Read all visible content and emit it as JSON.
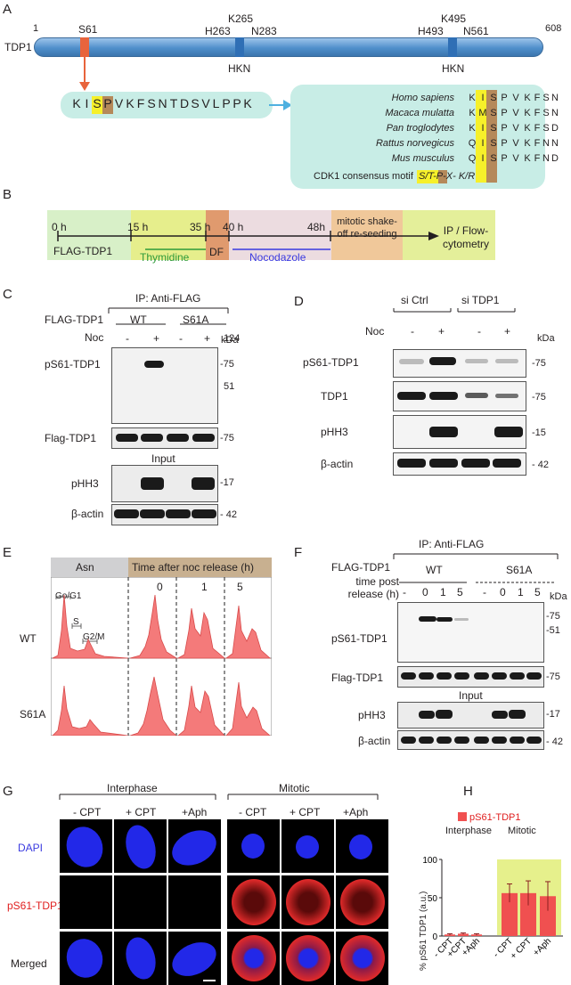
{
  "panels": {
    "A": "A",
    "B": "B",
    "C": "C",
    "D": "D",
    "E": "E",
    "F": "F",
    "G": "G",
    "H": "H"
  },
  "panelA": {
    "protein": "TDP1",
    "start": "1",
    "end": "608",
    "site_s61": "S61",
    "h263": "H263",
    "k265": "K265",
    "n283": "N283",
    "h493": "H493",
    "k495": "K495",
    "n561": "N561",
    "hkn1": "HKN",
    "hkn2": "HKN",
    "motif_seq": [
      "K",
      "I",
      "S",
      "P",
      "V",
      "K",
      "F",
      "S",
      "N",
      "T",
      "D",
      "S",
      "V",
      "L",
      "P",
      "P",
      "K"
    ],
    "species": [
      {
        "name": "Homo sapiens",
        "seq": [
          "K",
          "I",
          "S",
          "P",
          "V",
          "K",
          "F",
          "S",
          "N"
        ]
      },
      {
        "name": "Macaca mulatta",
        "seq": [
          "K",
          "M",
          "S",
          "P",
          "V",
          "K",
          "F",
          "S",
          "N"
        ]
      },
      {
        "name": "Pan troglodytes",
        "seq": [
          "K",
          "I",
          "S",
          "P",
          "V",
          "K",
          "F",
          "S",
          "D"
        ]
      },
      {
        "name": "Rattus norvegicus",
        "seq": [
          "Q",
          "I",
          "S",
          "P",
          "V",
          "K",
          "F",
          "N",
          "N"
        ]
      },
      {
        "name": "Mus musculus",
        "seq": [
          "Q",
          "I",
          "S",
          "P",
          "V",
          "K",
          "F",
          "N",
          "D"
        ]
      }
    ],
    "consensus_label": "CDK1 consensus motif",
    "consensus_motif": "S/T-P-X- K/R"
  },
  "panelB": {
    "t0": "0 h",
    "t15": "15 h",
    "t35": "35 h",
    "t40": "40 h",
    "t48": "48h",
    "seg_flag": "FLAG-TDP1",
    "seg_thymidine": "Thymidine",
    "seg_df": "DF",
    "seg_nocodazole": "Nocodazole",
    "seg_mitotic": "mitotic shake-off re-seeding",
    "seg_ip": "IP / Flow-cytometry"
  },
  "panelC": {
    "ip_title": "IP: Anti-FLAG",
    "row_label": "FLAG-TDP1",
    "wt": "WT",
    "s61a": "S61A",
    "noc": "Noc",
    "noc_values": [
      "-",
      "+",
      "-",
      "+"
    ],
    "kda": "kDa",
    "blots": [
      "pS61-TDP1",
      "Flag-TDP1",
      "pHH3",
      "β-actin"
    ],
    "input": "Input",
    "markers": [
      "124",
      "-75",
      "51",
      "-75",
      "-17",
      "- 42"
    ]
  },
  "panelD": {
    "si_ctrl": "si Ctrl",
    "si_tdp1": "si TDP1",
    "noc": "Noc",
    "noc_values": [
      "-",
      "+",
      "-",
      "+"
    ],
    "kda": "kDa",
    "blots": [
      "pS61-TDP1",
      "TDP1",
      "pHH3",
      "β-actin"
    ],
    "markers": [
      "-75",
      "-75",
      "-15",
      "- 42"
    ]
  },
  "panelE": {
    "asn": "Asn",
    "header": "Time after noc release (h)",
    "times": [
      "0",
      "1",
      "5"
    ],
    "rows": [
      "WT",
      "S61A"
    ],
    "phases": [
      "Go/G1",
      "S",
      "G2/M"
    ]
  },
  "panelF": {
    "ip_title": "IP: Anti-FLAG",
    "row_label": "FLAG-TDP1",
    "time_label": "time post release (h)",
    "wt": "WT",
    "s61a": "S61A",
    "times": [
      "-",
      "0",
      "1",
      "5",
      "-",
      "0",
      "1",
      "5"
    ],
    "kda": "kDa",
    "blots": [
      "pS61-TDP1",
      "Flag-TDP1",
      "pHH3",
      "β-actin"
    ],
    "input": "Input",
    "markers": [
      "-75",
      "-51",
      "-75",
      "-17",
      "- 42"
    ]
  },
  "panelG": {
    "interphase": "Interphase",
    "mitotic": "Mitotic",
    "conditions": [
      "- CPT",
      "+ CPT",
      "+Aph",
      "- CPT",
      "+ CPT",
      "+Aph"
    ],
    "rows": [
      "DAPI",
      "pS61-TDP1",
      "Merged"
    ]
  },
  "panelH": {
    "legend": "pS61-TDP1",
    "ylabel": "% pS61 TDP1 (a.u.)",
    "interphase": "Interphase",
    "mitotic": "Mitotic",
    "xlabels": [
      "- CPT",
      "+CPT",
      "+Aph",
      "- CPT",
      "+ CPT",
      "+Aph"
    ],
    "yticks": [
      "0",
      "50",
      "100"
    ]
  },
  "colors": {
    "bar_blue": "#5b9bd5",
    "s61_orange": "#e8643c",
    "motif_bg": "#c8ede6",
    "yellow_hl": "#f6f02a",
    "brown_hl": "#b5895a",
    "green_phase": "#d8f0c8",
    "thymidine": "#e6ee8c",
    "df": "#e09a6e",
    "nocodazole": "#ecdce0",
    "mitotic_box": "#f0c89a",
    "ip_box": "#e4ef9a",
    "red_bar": "#f05050",
    "green_bg": "#e6f08c",
    "flow_red": "#f47a7a"
  },
  "chart_data": {
    "type": "bar",
    "categories": [
      "- CPT",
      "+CPT",
      "+Aph",
      "- CPT",
      "+ CPT",
      "+Aph"
    ],
    "series": [
      {
        "name": "pS61-TDP1",
        "values": [
          2,
          3,
          2,
          56,
          56,
          52
        ],
        "errors": [
          1,
          1,
          1,
          12,
          16,
          19
        ]
      }
    ],
    "ylabel": "% pS61 TDP1 (a.u.)",
    "ylim": [
      0,
      100
    ],
    "groups": [
      "Interphase",
      "Mitotic"
    ]
  }
}
